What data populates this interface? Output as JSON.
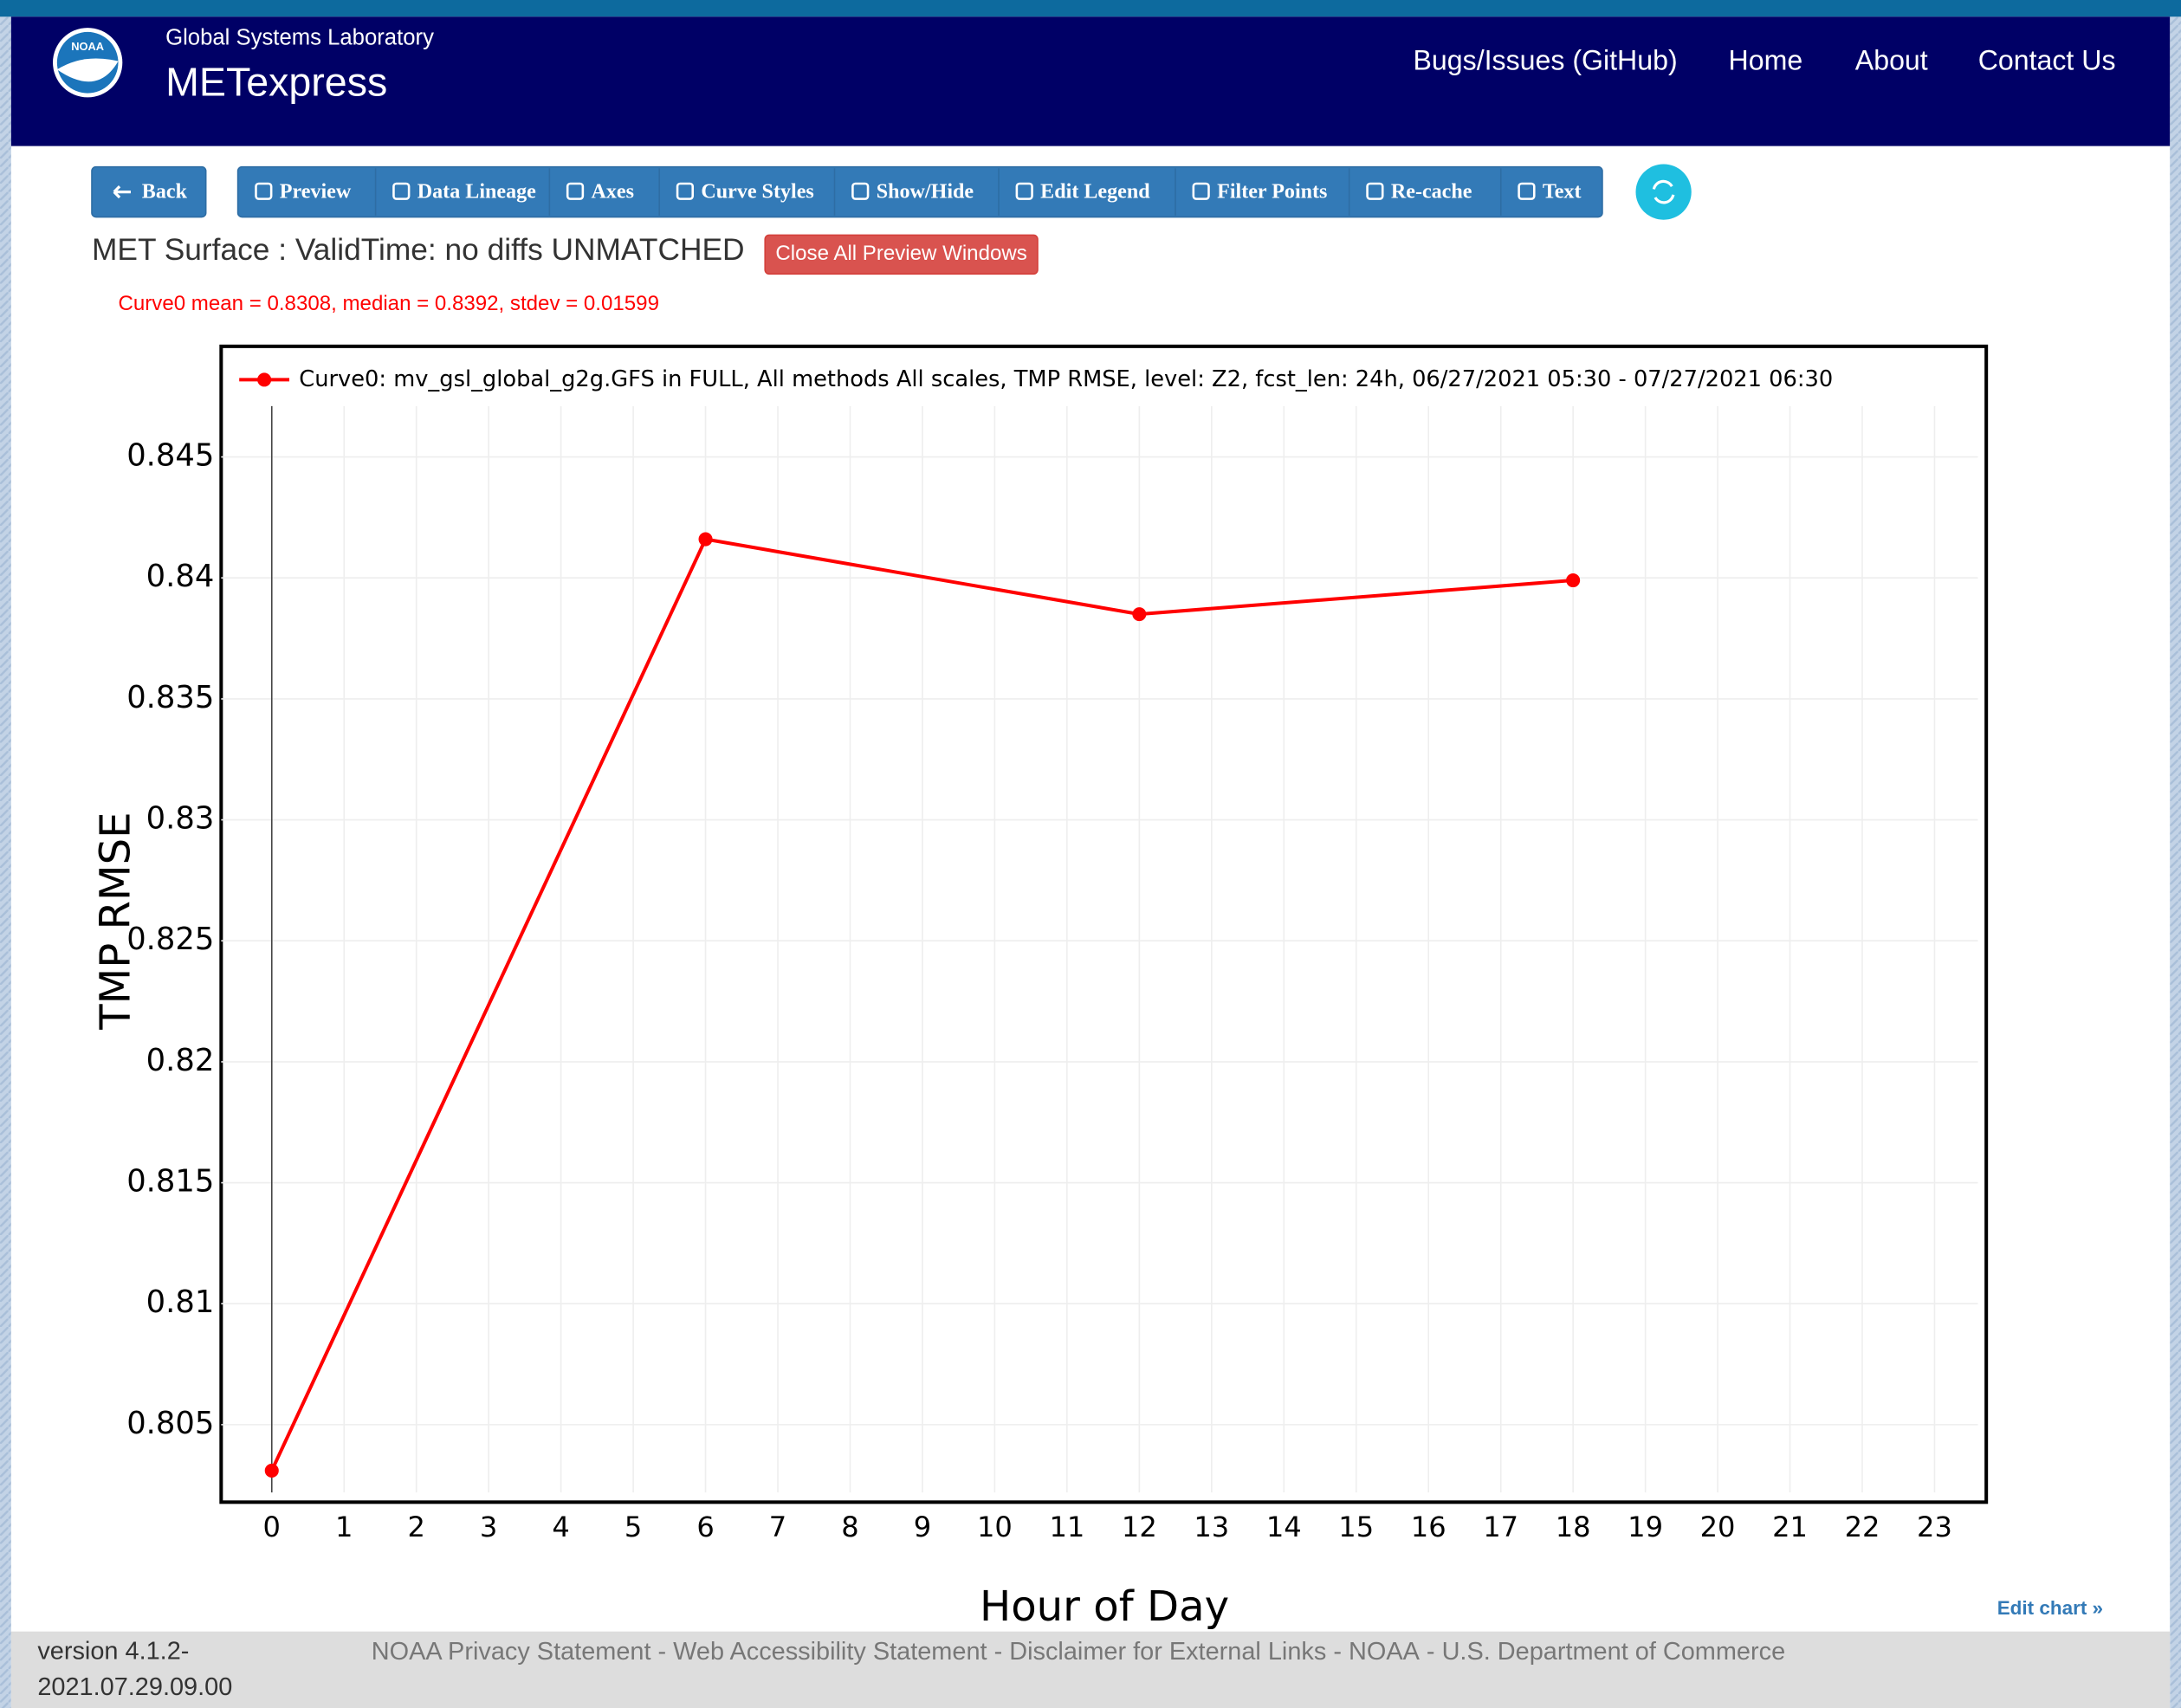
{
  "header": {
    "lab": "Global Systems Laboratory",
    "app": "METexpress",
    "logo": "NOAA",
    "nav": [
      "Bugs/Issues (GitHub)",
      "Home",
      "About",
      "Contact Us"
    ]
  },
  "toolbar": {
    "back": "Back",
    "items": [
      "Preview",
      "Data Lineage",
      "Axes",
      "Curve Styles",
      "Show/Hide",
      "Edit Legend",
      "Filter Points",
      "Re-cache",
      "Text"
    ]
  },
  "plot_title": "MET Surface : ValidTime: no diffs UNMATCHED",
  "close_button": "Close All Preview Windows",
  "stats": "Curve0 mean = 0.8308, median = 0.8392, stdev = 0.01599",
  "chart_data": {
    "type": "line",
    "x_label": "Hour of Day",
    "y_label": "TMP RMSE",
    "x": [
      0,
      6,
      12,
      18
    ],
    "series": [
      {
        "name": "Curve0: mv_gsl_global_g2g.GFS in FULL, All methods All scales, TMP RMSE, level: Z2, fcst_len: 24h, 06/27/2021 05:30 - 07/27/2021 06:30",
        "color": "#ff0000",
        "values": [
          0.8031,
          0.8416,
          0.8385,
          0.8399
        ]
      }
    ],
    "xlim": [
      -0.7,
      23.6
    ],
    "ylim": [
      0.8022,
      0.8471
    ],
    "xticks": [
      0,
      1,
      2,
      3,
      4,
      5,
      6,
      7,
      8,
      9,
      10,
      11,
      12,
      13,
      14,
      15,
      16,
      17,
      18,
      19,
      20,
      21,
      22,
      23
    ],
    "yticks": [
      0.805,
      0.81,
      0.815,
      0.82,
      0.825,
      0.83,
      0.835,
      0.84,
      0.845
    ],
    "grid": true,
    "legend": "top-left"
  },
  "edit_chart": "Edit chart »",
  "footer": {
    "version": [
      "version 4.1.2-",
      "2021.07.29.09.00"
    ],
    "separator": "-",
    "links": [
      "NOAA Privacy Statement",
      "Web Accessibility Statement",
      "Disclaimer for External Links",
      "NOAA",
      "U.S. Department of Commerce"
    ]
  }
}
